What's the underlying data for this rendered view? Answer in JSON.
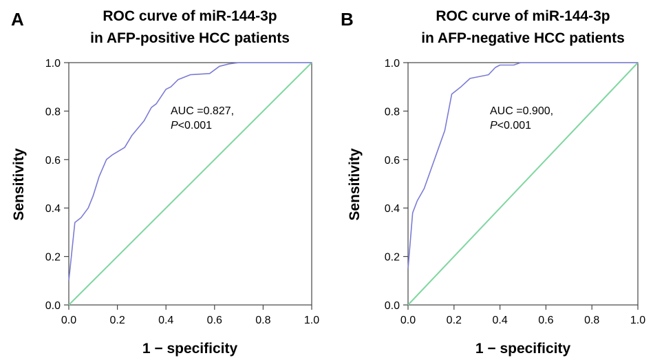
{
  "chart_data": [
    {
      "type": "line",
      "panel_label": "A",
      "title_lines": [
        "ROC curve of miR-144-3p",
        "in AFP-positive HCC patients"
      ],
      "xlabel": "1 − specificity",
      "ylabel": "Sensitivity",
      "xlim": [
        0,
        1
      ],
      "ylim": [
        0,
        1
      ],
      "x_ticks": [
        "0.0",
        "0.2",
        "0.4",
        "0.6",
        "0.8",
        "1.0"
      ],
      "y_ticks": [
        "0.0",
        "0.2",
        "0.4",
        "0.6",
        "0.8",
        "1.0"
      ],
      "annotation_line1": "AUC =0.827,",
      "annotation_p_italic": "P",
      "annotation_p_rest": "<0.001",
      "grid": false,
      "roc_color": "#7b7bd6",
      "reference_color": "#7fd6a0",
      "series": [
        {
          "values": [
            [
              0.0,
              0.1
            ],
            [
              0.025,
              0.34
            ],
            [
              0.05,
              0.36
            ],
            [
              0.08,
              0.4
            ],
            [
              0.1,
              0.45
            ],
            [
              0.125,
              0.53
            ],
            [
              0.155,
              0.6
            ],
            [
              0.18,
              0.62
            ],
            [
              0.23,
              0.65
            ],
            [
              0.26,
              0.7
            ],
            [
              0.31,
              0.76
            ],
            [
              0.34,
              0.815
            ],
            [
              0.36,
              0.83
            ],
            [
              0.4,
              0.89
            ],
            [
              0.42,
              0.9
            ],
            [
              0.45,
              0.93
            ],
            [
              0.5,
              0.95
            ],
            [
              0.58,
              0.955
            ],
            [
              0.62,
              0.985
            ],
            [
              0.66,
              0.995
            ],
            [
              0.7,
              1.0
            ],
            [
              1.0,
              1.0
            ]
          ]
        },
        {
          "values": [
            [
              0,
              0
            ],
            [
              1,
              1
            ]
          ]
        }
      ]
    },
    {
      "type": "line",
      "panel_label": "B",
      "title_lines": [
        "ROC curve of miR-144-3p",
        "in AFP-negative HCC patients"
      ],
      "xlabel": "1 − specificity",
      "ylabel": "Sensitivity",
      "xlim": [
        0,
        1
      ],
      "ylim": [
        0,
        1
      ],
      "x_ticks": [
        "0.0",
        "0.2",
        "0.4",
        "0.6",
        "0.8",
        "1.0"
      ],
      "y_ticks": [
        "0.0",
        "0.2",
        "0.4",
        "0.6",
        "0.8",
        "1.0"
      ],
      "annotation_line1": "AUC =0.900,",
      "annotation_p_italic": "P",
      "annotation_p_rest": "<0.001",
      "grid": false,
      "roc_color": "#7b7bd6",
      "reference_color": "#7fd6a0",
      "series": [
        {
          "values": [
            [
              0.0,
              0.15
            ],
            [
              0.02,
              0.38
            ],
            [
              0.04,
              0.43
            ],
            [
              0.07,
              0.48
            ],
            [
              0.1,
              0.56
            ],
            [
              0.13,
              0.64
            ],
            [
              0.16,
              0.72
            ],
            [
              0.19,
              0.87
            ],
            [
              0.23,
              0.9
            ],
            [
              0.27,
              0.935
            ],
            [
              0.35,
              0.95
            ],
            [
              0.38,
              0.98
            ],
            [
              0.4,
              0.99
            ],
            [
              0.46,
              0.99
            ],
            [
              0.49,
              1.0
            ],
            [
              1.0,
              1.0
            ]
          ]
        },
        {
          "values": [
            [
              0,
              0
            ],
            [
              1,
              1
            ]
          ]
        }
      ]
    }
  ]
}
